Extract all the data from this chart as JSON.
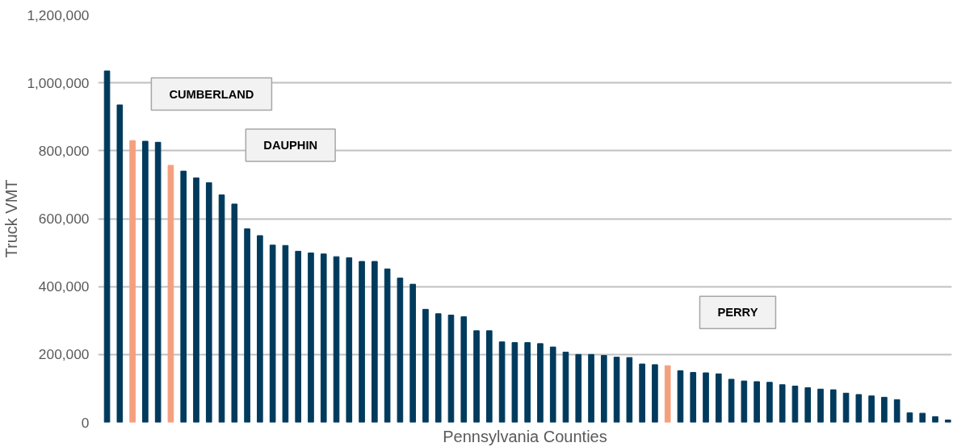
{
  "chart_data": {
    "type": "bar",
    "xlabel": "Pennsylvania Counties",
    "ylabel": "Truck VMT",
    "categories": [
      null,
      null,
      null,
      null,
      null,
      null,
      null,
      null,
      null,
      null,
      null,
      null,
      null,
      null,
      null,
      null,
      null,
      null,
      null,
      null,
      null,
      null,
      null,
      null,
      null,
      null,
      null,
      null,
      null,
      null,
      null,
      null,
      null,
      null,
      null,
      null,
      null,
      null,
      null,
      null,
      null,
      null,
      null,
      null,
      null,
      null,
      null,
      null,
      null,
      null,
      null,
      null,
      null,
      null,
      null,
      null,
      null,
      null,
      null,
      null,
      null,
      null,
      null,
      null,
      null,
      null,
      null
    ],
    "values": [
      1035000,
      935000,
      830000,
      828000,
      825000,
      757000,
      740000,
      720000,
      706000,
      670000,
      643000,
      570000,
      550000,
      522000,
      521000,
      504000,
      499000,
      496000,
      488000,
      485000,
      474000,
      474000,
      452000,
      425000,
      407000,
      333000,
      320000,
      316000,
      311000,
      270000,
      270000,
      237000,
      235000,
      235000,
      232000,
      222000,
      207000,
      200000,
      200000,
      197000,
      192000,
      191000,
      172000,
      170000,
      167000,
      152000,
      147000,
      146000,
      143000,
      127000,
      122000,
      120000,
      118000,
      111000,
      107000,
      102000,
      98000,
      96000,
      86000,
      82000,
      78000,
      74000,
      67000,
      28000,
      27000,
      17000,
      7000
    ],
    "colors": [
      "#003a5c",
      "#003a5c",
      "#f4a07f",
      "#003a5c",
      "#003a5c",
      "#f4a07f",
      "#003a5c",
      "#003a5c",
      "#003a5c",
      "#003a5c",
      "#003a5c",
      "#003a5c",
      "#003a5c",
      "#003a5c",
      "#003a5c",
      "#003a5c",
      "#003a5c",
      "#003a5c",
      "#003a5c",
      "#003a5c",
      "#003a5c",
      "#003a5c",
      "#003a5c",
      "#003a5c",
      "#003a5c",
      "#003a5c",
      "#003a5c",
      "#003a5c",
      "#003a5c",
      "#003a5c",
      "#003a5c",
      "#003a5c",
      "#003a5c",
      "#003a5c",
      "#003a5c",
      "#003a5c",
      "#003a5c",
      "#003a5c",
      "#003a5c",
      "#003a5c",
      "#003a5c",
      "#003a5c",
      "#003a5c",
      "#003a5c",
      "#f4a07f",
      "#003a5c",
      "#003a5c",
      "#003a5c",
      "#003a5c",
      "#003a5c",
      "#003a5c",
      "#003a5c",
      "#003a5c",
      "#003a5c",
      "#003a5c",
      "#003a5c",
      "#003a5c",
      "#003a5c",
      "#003a5c",
      "#003a5c",
      "#003a5c",
      "#003a5c",
      "#003a5c",
      "#003a5c",
      "#003a5c",
      "#003a5c",
      "#003a5c"
    ],
    "ylim": [
      0,
      1200000
    ],
    "yticks": [
      {
        "value": 0,
        "label": "0"
      },
      {
        "value": 200000,
        "label": "200,000"
      },
      {
        "value": 400000,
        "label": "400,000"
      },
      {
        "value": 600000,
        "label": "600,000"
      },
      {
        "value": 800000,
        "label": "800,000"
      },
      {
        "value": 1000000,
        "label": "1,000,000"
      },
      {
        "value": 1200000,
        "label": "1,200,000"
      }
    ],
    "grid": "y",
    "tick_labels": "y",
    "annotations": [
      "CUMBERLAND",
      "DAUPHIN",
      "PERRY"
    ]
  }
}
